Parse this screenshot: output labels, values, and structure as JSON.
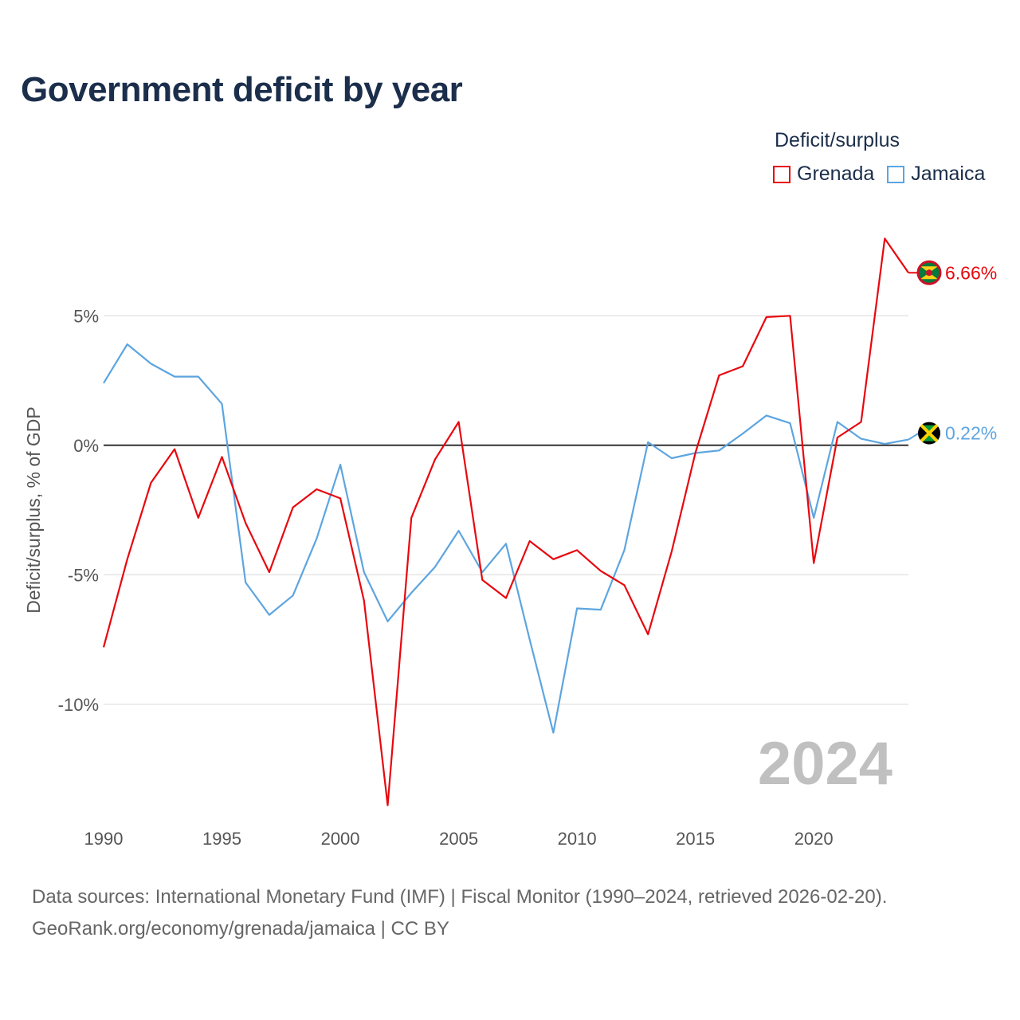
{
  "title": "Government deficit by year",
  "legend": {
    "title": "Deficit/surplus",
    "items": [
      {
        "name": "Grenada",
        "color": "#e8070e"
      },
      {
        "name": "Jamaica",
        "color": "#5da5e0"
      }
    ]
  },
  "footer": {
    "line1": "Data sources: International Monetary Fund (IMF) | Fiscal Monitor (1990–2024, retrieved 2026-02-20).",
    "line2": "GeoRank.org/economy/grenada/jamaica | CC BY"
  },
  "chart_data": {
    "type": "line",
    "title": "Government deficit by year",
    "xlabel": "",
    "ylabel": "Deficit/surplus, % of GDP",
    "xlim": [
      1990,
      2024
    ],
    "ylim": [
      -14.5,
      9.5
    ],
    "xticks": [
      1990,
      1995,
      2000,
      2005,
      2010,
      2015,
      2020
    ],
    "yticks": [
      5,
      0,
      -5,
      -10
    ],
    "ytick_labels": [
      "5%",
      "0%",
      "-5%",
      "-10%"
    ],
    "year_watermark": "2024",
    "x": [
      1990,
      1991,
      1992,
      1993,
      1994,
      1995,
      1996,
      1997,
      1998,
      1999,
      2000,
      2001,
      2002,
      2003,
      2004,
      2005,
      2006,
      2007,
      2008,
      2009,
      2010,
      2011,
      2012,
      2013,
      2014,
      2015,
      2016,
      2017,
      2018,
      2019,
      2020,
      2021,
      2022,
      2023,
      2024
    ],
    "series": [
      {
        "name": "Grenada",
        "color": "#e8070e",
        "end_label": "6.66%",
        "values": [
          -7.8,
          -4.4,
          -1.45,
          -0.15,
          -2.8,
          -0.45,
          -3.0,
          -4.9,
          -2.4,
          -1.7,
          -2.05,
          -6.0,
          -13.9,
          -2.8,
          -0.55,
          0.9,
          -5.2,
          -5.9,
          -3.7,
          -4.4,
          -4.05,
          -4.85,
          -5.4,
          -7.3,
          -4.1,
          -0.3,
          2.7,
          3.05,
          4.95,
          5.0,
          -4.55,
          0.3,
          0.9,
          7.98,
          6.66
        ]
      },
      {
        "name": "Jamaica",
        "color": "#5da5e0",
        "end_label": "0.22%",
        "values": [
          2.4,
          3.9,
          3.15,
          2.65,
          2.65,
          1.6,
          -5.3,
          -6.55,
          -5.8,
          -3.6,
          -0.75,
          -4.9,
          -6.8,
          -5.7,
          -4.7,
          -3.3,
          -4.9,
          -3.8,
          -7.5,
          -11.1,
          -6.3,
          -6.35,
          -4.05,
          0.12,
          -0.5,
          -0.3,
          -0.2,
          0.45,
          1.15,
          0.85,
          -2.8,
          0.9,
          0.25,
          0.05,
          0.22
        ]
      }
    ]
  }
}
